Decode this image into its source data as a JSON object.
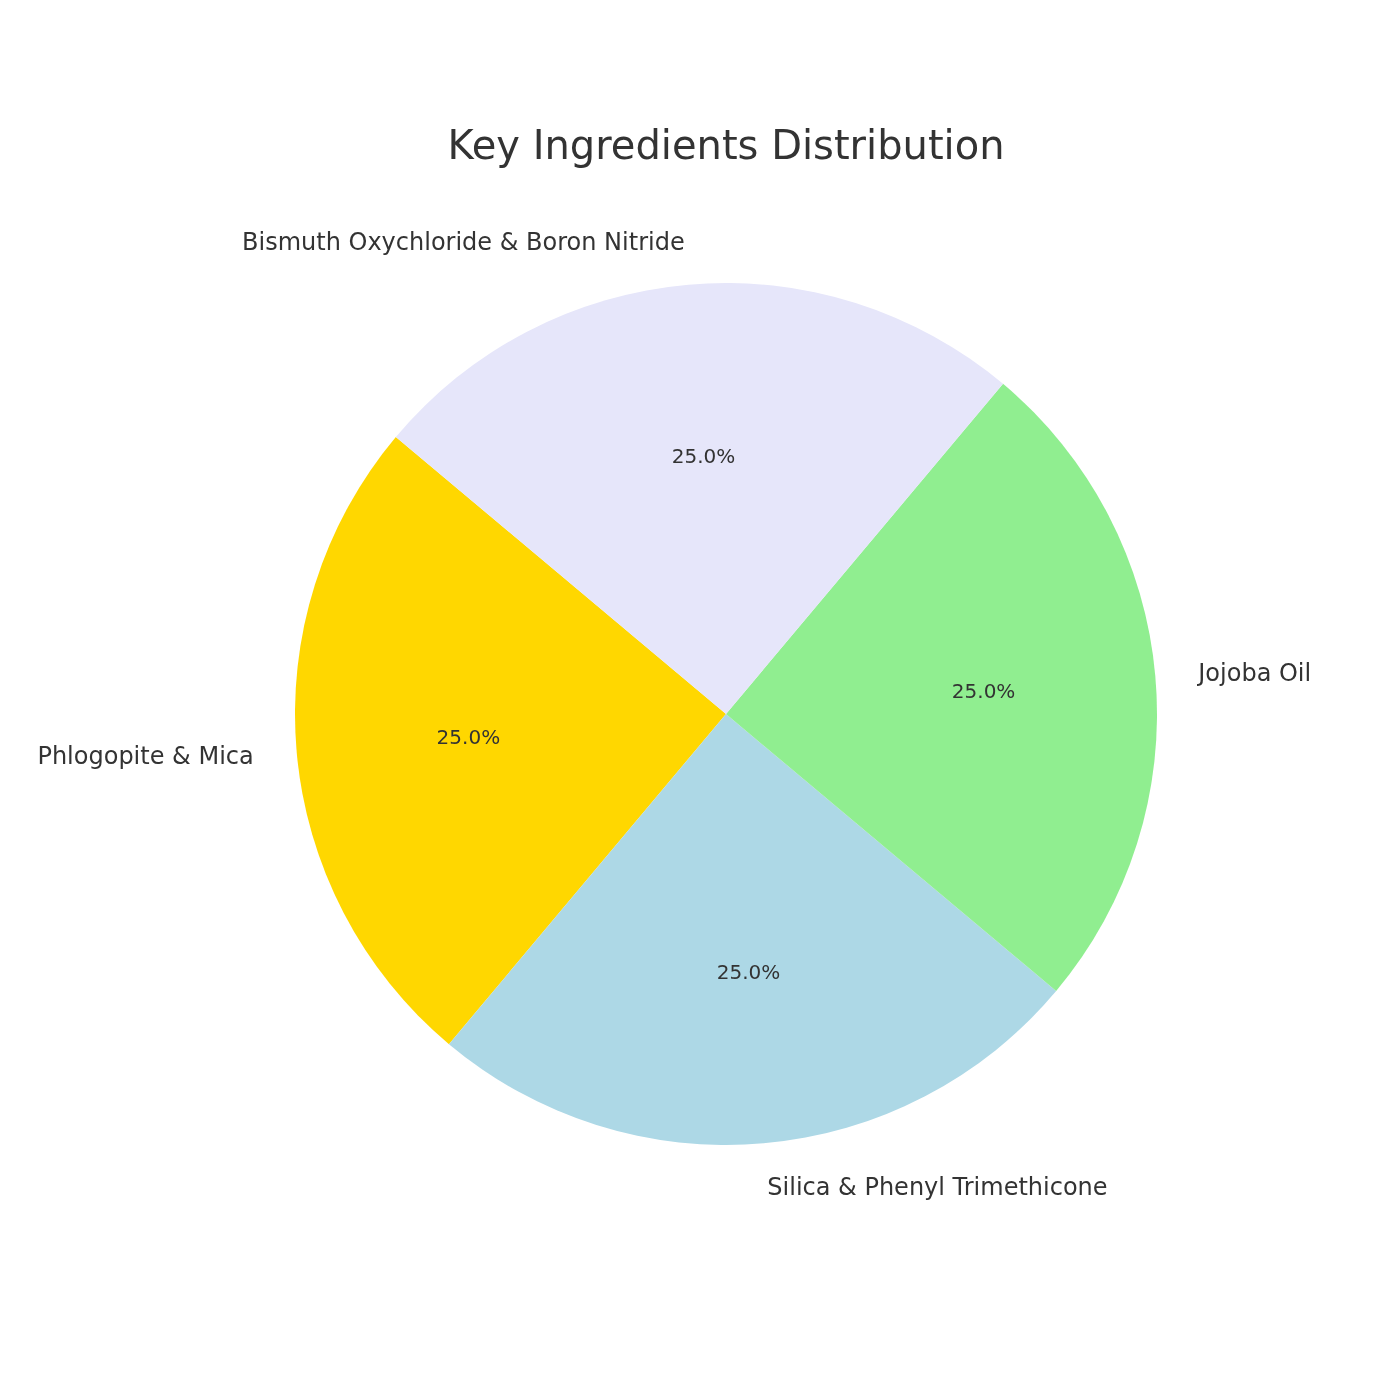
{
  "chart_data": {
    "type": "pie",
    "title": "Key Ingredients Distribution",
    "categories": [
      "Phlogopite & Mica",
      "Silica & Phenyl Trimethicone",
      "Jojoba Oil",
      "Bismuth Oxychloride & Boron Nitride"
    ],
    "values": [
      25,
      25,
      25,
      25
    ],
    "colors": [
      "#ffd700",
      "#add8e6",
      "#90ee90",
      "#e6e6fa"
    ],
    "value_labels": [
      "25.0%",
      "25.0%",
      "25.0%",
      "25.0%"
    ]
  }
}
